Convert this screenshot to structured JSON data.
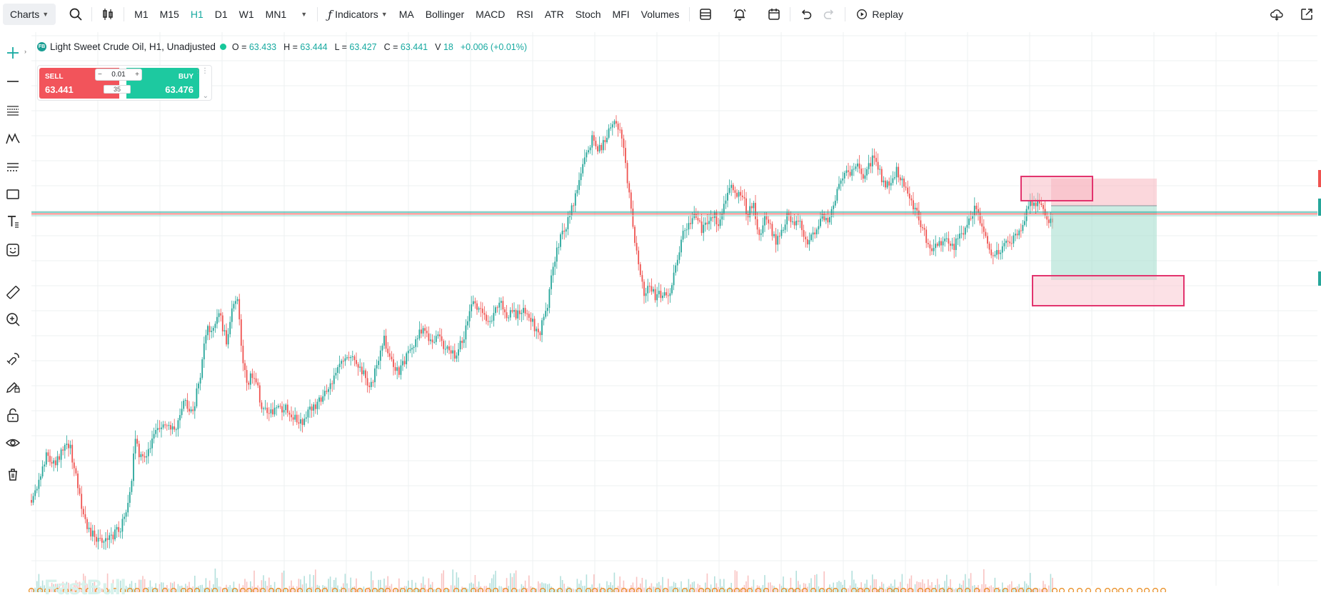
{
  "toolbar": {
    "charts_label": "Charts",
    "timeframes": [
      "M1",
      "M15",
      "H1",
      "D1",
      "W1",
      "MN1"
    ],
    "active_timeframe": "H1",
    "indicators_label": "Indicators",
    "indicator_shortcuts": [
      "MA",
      "Bollinger",
      "MACD",
      "RSI",
      "ATR",
      "Stoch",
      "MFI",
      "Volumes"
    ],
    "replay_label": "Replay"
  },
  "symbol": {
    "logo_text": "FB",
    "title": "Light Sweet Crude Oil, H1, Unadjusted",
    "open_label": "O =",
    "open": "63.433",
    "high_label": "H =",
    "high": "63.444",
    "low_label": "L =",
    "low": "63.427",
    "close_label": "C =",
    "close": "63.441",
    "volume_label": "V",
    "volume": "18",
    "change": "+0.006 (+0.01%)"
  },
  "trade": {
    "sell_label": "SELL",
    "sell_price": "63.441",
    "buy_label": "BUY",
    "buy_price": "63.476",
    "quantity": "0.01",
    "spread": "35"
  },
  "watermark": "FastBull",
  "colors": {
    "up": "#26a69a",
    "down": "#ef5350",
    "accent": "#16a9a0",
    "zone_pink": "#e2346e"
  },
  "icons": {
    "search": "search-icon",
    "chart_type": "candlestick-icon",
    "layout": "layout-icon",
    "alert": "alarm-bell-icon",
    "calendar": "calendar-icon",
    "undo": "undo-icon",
    "redo": "redo-icon",
    "replay": "replay-icon",
    "cloud": "cloud-save-icon",
    "popout": "popout-icon"
  }
}
